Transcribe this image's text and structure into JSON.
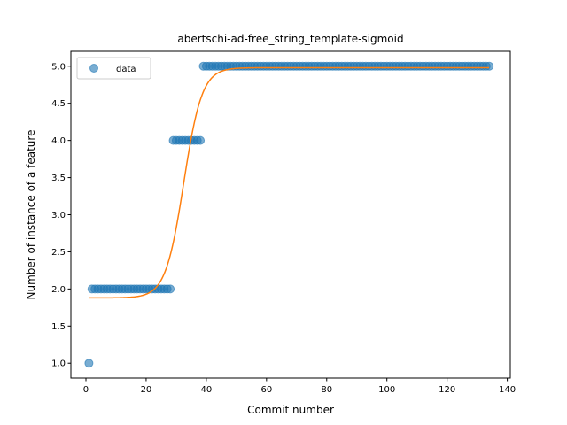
{
  "chart_data": {
    "type": "scatter",
    "title": "abertschi-ad-free_string_template-sigmoid",
    "xlabel": "Commit number",
    "ylabel": "Number of instance of a feature",
    "xlim": [
      -5,
      141
    ],
    "ylim": [
      0.8,
      5.2
    ],
    "xticks": [
      0,
      20,
      40,
      60,
      80,
      100,
      120,
      140
    ],
    "yticks": [
      1.0,
      1.5,
      2.0,
      2.5,
      3.0,
      3.5,
      4.0,
      4.5,
      5.0
    ],
    "ytick_labels": [
      "1.0",
      "1.5",
      "2.0",
      "2.5",
      "3.0",
      "3.5",
      "4.0",
      "4.5",
      "5.0"
    ],
    "grid": false,
    "legend": {
      "position": "top-left",
      "entries": [
        "data"
      ]
    },
    "colors": {
      "data": "#1f77b4",
      "fit": "#ff7f0e"
    },
    "series": [
      {
        "name": "data",
        "kind": "scatter",
        "segments": [
          {
            "x_from": 1,
            "x_to": 1,
            "y": 1.0
          },
          {
            "x_from": 2,
            "x_to": 28,
            "y": 2.0
          },
          {
            "x_from": 29,
            "x_to": 38,
            "y": 4.0
          },
          {
            "x_from": 39,
            "x_to": 134,
            "y": 5.0
          }
        ]
      },
      {
        "kind": "line",
        "model": "sigmoid",
        "params": {
          "lower": 1.88,
          "upper": 4.98,
          "midpoint": 32.5,
          "rate": 0.33
        },
        "x_range": [
          1,
          134
        ]
      }
    ]
  }
}
